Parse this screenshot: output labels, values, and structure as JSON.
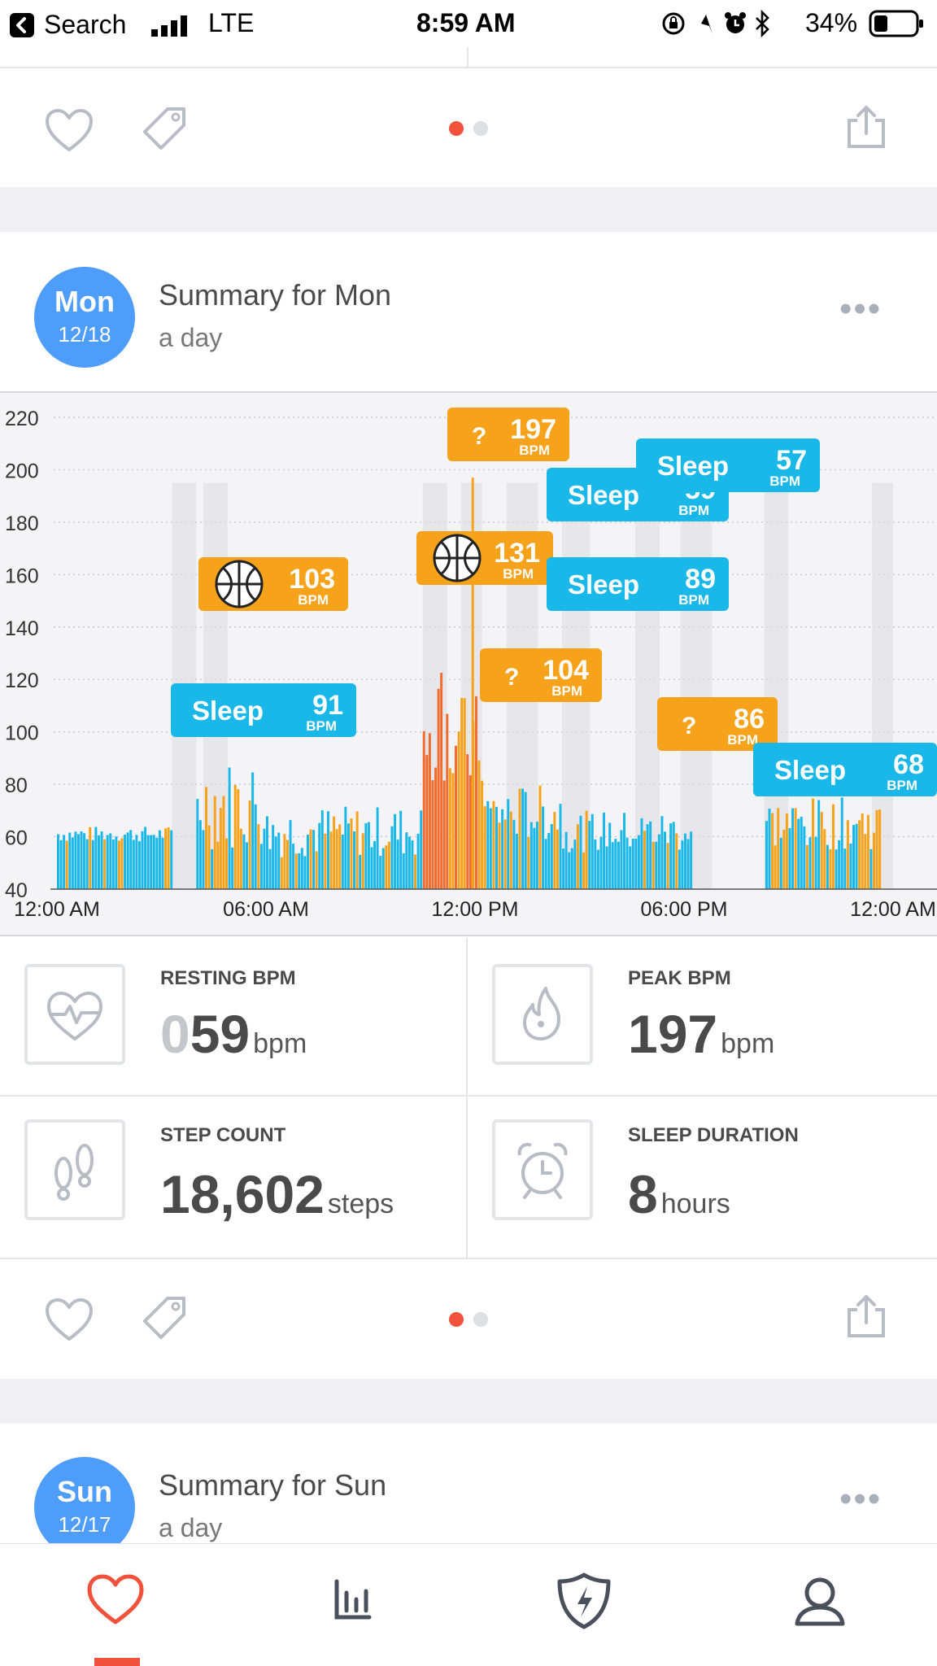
{
  "status_bar": {
    "back_label": "Search",
    "network": "LTE",
    "time": "8:59 AM",
    "battery": "34%",
    "battery_level": 0.34
  },
  "top_card": {
    "page_dots_active": 0
  },
  "monday_card": {
    "day_name": "Mon",
    "day_date": "12/18",
    "title": "Summary for Mon",
    "subtitle": "a day",
    "more_label": "•••"
  },
  "chart_data": {
    "type": "bar",
    "y_ticks": [
      "220",
      "200",
      "180",
      "160",
      "140",
      "120",
      "100",
      "80",
      "60",
      "40"
    ],
    "x_ticks": [
      "12:00 AM",
      "06:00 AM",
      "12:00 PM",
      "06:00 PM",
      "12:00 AM"
    ],
    "ylim": [
      40,
      220
    ],
    "xlim_hours": [
      0,
      24
    ],
    "colors": {
      "sleep": "#1ab8e8",
      "activity": "#f7a21b",
      "peak": "#f26b2f",
      "band": "#dcdde2"
    },
    "annotations": [
      {
        "kind": "sleep",
        "label": "Sleep",
        "bpm": "91",
        "unit": "BPM"
      },
      {
        "kind": "workout",
        "label": "",
        "bpm": "103",
        "unit": "BPM"
      },
      {
        "kind": "unknown",
        "label": "?",
        "bpm": "197",
        "unit": "BPM"
      },
      {
        "kind": "workout",
        "label": "",
        "bpm": "131",
        "unit": "BPM"
      },
      {
        "kind": "unknown",
        "label": "?",
        "bpm": "104",
        "unit": "BPM"
      },
      {
        "kind": "sleep",
        "label": "Sleep",
        "bpm": "59",
        "unit": "BPM"
      },
      {
        "kind": "sleep",
        "label": "Sleep",
        "bpm": "57",
        "unit": "BPM"
      },
      {
        "kind": "sleep",
        "label": "Sleep",
        "bpm": "89",
        "unit": "BPM"
      },
      {
        "kind": "unknown",
        "label": "?",
        "bpm": "86",
        "unit": "BPM"
      },
      {
        "kind": "sleep",
        "label": "Sleep",
        "bpm": "68",
        "unit": "BPM"
      }
    ]
  },
  "stats": {
    "resting": {
      "label": "RESTING BPM",
      "lead": "0",
      "value": "59",
      "unit": "bpm"
    },
    "peak": {
      "label": "PEAK BPM",
      "value": "197",
      "unit": "bpm"
    },
    "steps": {
      "label": "STEP COUNT",
      "value": "18,602",
      "unit": "steps"
    },
    "sleep": {
      "label": "SLEEP DURATION",
      "value": "8",
      "unit": "hours"
    }
  },
  "sunday_card": {
    "day_name": "Sun",
    "day_date": "12/17",
    "title": "Summary for Sun",
    "subtitle": "a day",
    "more_label": "•••"
  },
  "tabbar": {
    "items": [
      {
        "name": "feed",
        "icon": "heart-icon",
        "active": true
      },
      {
        "name": "trends",
        "icon": "bar-chart-icon",
        "active": false
      },
      {
        "name": "coaching",
        "icon": "shield-bolt-icon",
        "active": false
      },
      {
        "name": "profile",
        "icon": "person-icon",
        "active": false
      }
    ],
    "active_color": "#f0523c"
  }
}
